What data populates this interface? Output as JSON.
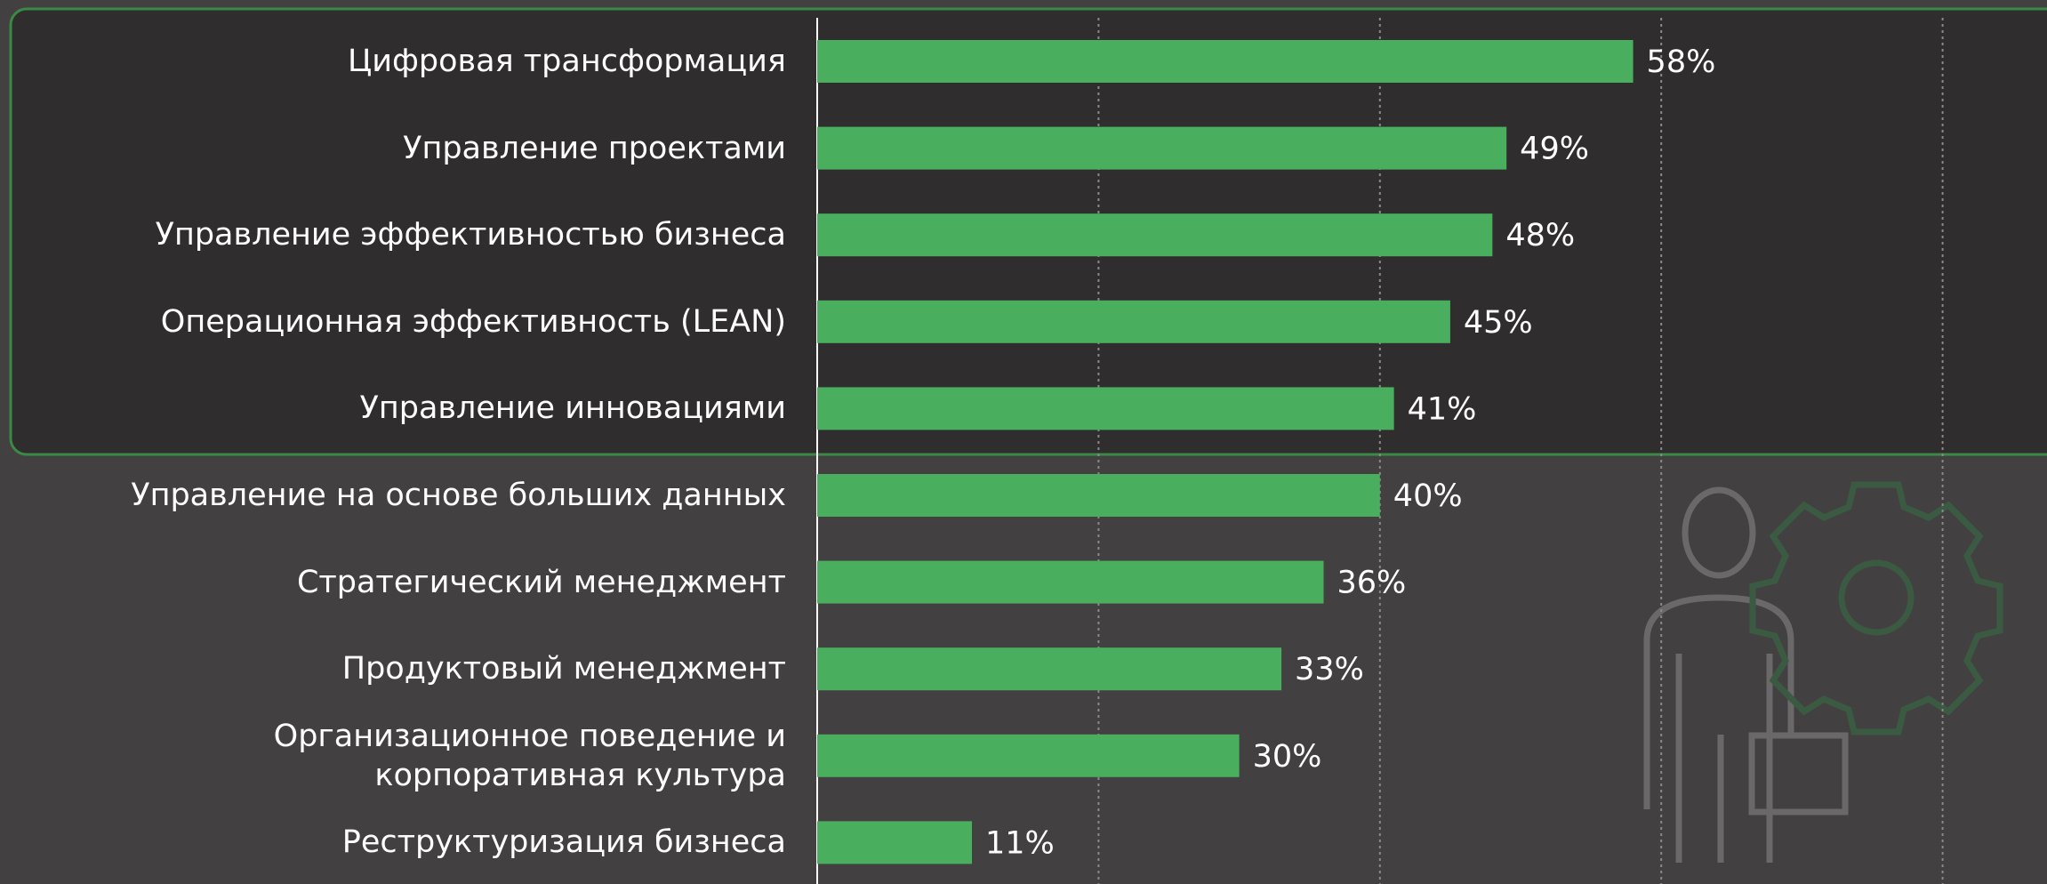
{
  "chart_data": {
    "type": "bar",
    "orientation": "horizontal",
    "categories": [
      "Цифровая трансформация",
      "Управление проектами",
      "Управление эффективностью бизнеса",
      "Операционная эффективность (LEAN)",
      "Управление инновациями",
      "Управление на основе больших данных",
      "Стратегический менеджмент",
      "Продуктовый менеджмент",
      "Организационное поведение и\nкорпоративная культура",
      "Реструктуризация бизнеса"
    ],
    "values": [
      58,
      49,
      48,
      45,
      41,
      40,
      36,
      33,
      30,
      11
    ],
    "value_labels": [
      "58%",
      "49%",
      "48%",
      "45%",
      "41%",
      "40%",
      "36%",
      "33%",
      "30%",
      "11%"
    ],
    "color": "#4aae5f",
    "xlim": [
      0,
      87
    ],
    "xticks": [
      0,
      20,
      40,
      60,
      80
    ],
    "grid": true
  }
}
